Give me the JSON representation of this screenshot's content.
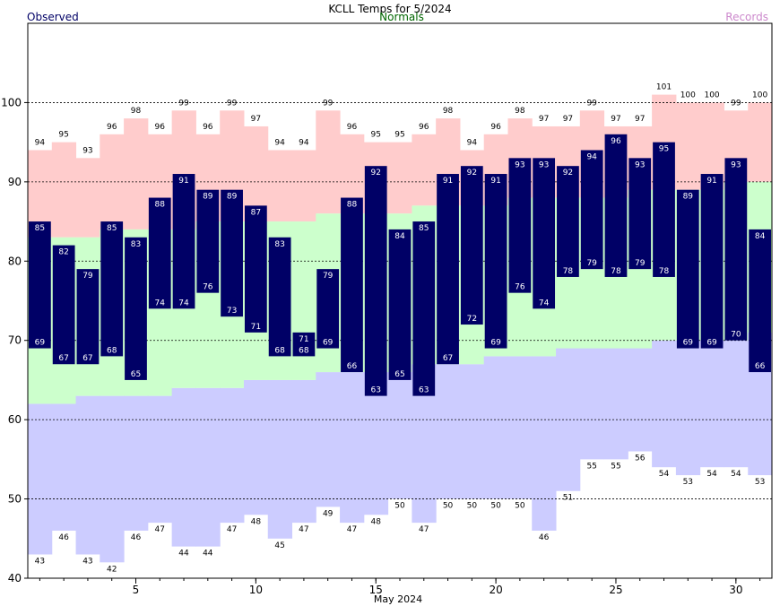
{
  "chart_data": {
    "type": "bar",
    "title": "KCLL Temps for 5/2024",
    "legend": {
      "observed": "Observed",
      "normals": "Normals",
      "records": "Records"
    },
    "xlabel": "May 2024",
    "ylabel": "",
    "x_ticks": [
      5,
      10,
      15,
      20,
      25,
      30
    ],
    "y_ticks": [
      40,
      50,
      60,
      70,
      80,
      90,
      100
    ],
    "ylim": [
      40,
      110
    ],
    "days": [
      1,
      2,
      3,
      4,
      5,
      6,
      7,
      8,
      9,
      10,
      11,
      12,
      13,
      14,
      15,
      16,
      17,
      18,
      19,
      20,
      21,
      22,
      23,
      24,
      25,
      26,
      27,
      28,
      29,
      30,
      31
    ],
    "observed_high": [
      85,
      82,
      79,
      85,
      83,
      88,
      91,
      89,
      89,
      87,
      83,
      71,
      79,
      88,
      92,
      84,
      85,
      91,
      92,
      91,
      93,
      93,
      92,
      94,
      96,
      93,
      95,
      89,
      91,
      93,
      84
    ],
    "observed_low": [
      69,
      67,
      67,
      68,
      65,
      74,
      74,
      76,
      73,
      71,
      68,
      68,
      69,
      66,
      63,
      65,
      63,
      67,
      72,
      69,
      76,
      74,
      78,
      79,
      78,
      79,
      78,
      69,
      69,
      70,
      66
    ],
    "normal_high": [
      83,
      83,
      83,
      84,
      84,
      84,
      84,
      85,
      85,
      85,
      85,
      85,
      86,
      86,
      86,
      86,
      87,
      87,
      87,
      87,
      88,
      88,
      88,
      88,
      88,
      89,
      89,
      89,
      89,
      90,
      90
    ],
    "normal_low": [
      62,
      62,
      63,
      63,
      63,
      63,
      64,
      64,
      64,
      65,
      65,
      65,
      66,
      66,
      66,
      66,
      67,
      67,
      67,
      68,
      68,
      68,
      69,
      69,
      69,
      69,
      70,
      70,
      70,
      70,
      71
    ],
    "record_high": [
      94,
      95,
      93,
      96,
      98,
      96,
      99,
      96,
      99,
      97,
      94,
      94,
      99,
      96,
      95,
      95,
      96,
      98,
      94,
      96,
      98,
      97,
      97,
      99,
      97,
      97,
      101,
      100,
      100,
      99,
      100
    ],
    "record_low": [
      43,
      46,
      43,
      42,
      46,
      47,
      44,
      44,
      47,
      48,
      45,
      47,
      49,
      47,
      48,
      50,
      47,
      50,
      50,
      50,
      50,
      46,
      51,
      55,
      55,
      56,
      54,
      53,
      54,
      54,
      53
    ],
    "colors": {
      "observed": "#000066",
      "normal": "#ccffcc",
      "record_high": "#ffcccc",
      "record_low": "#ccccff",
      "observed_text": "#000066",
      "normals_text": "#006600",
      "records_text": "#cc88cc"
    },
    "grid": "dashed horizontal at 50, 60, 70, 80, 90, 100"
  }
}
